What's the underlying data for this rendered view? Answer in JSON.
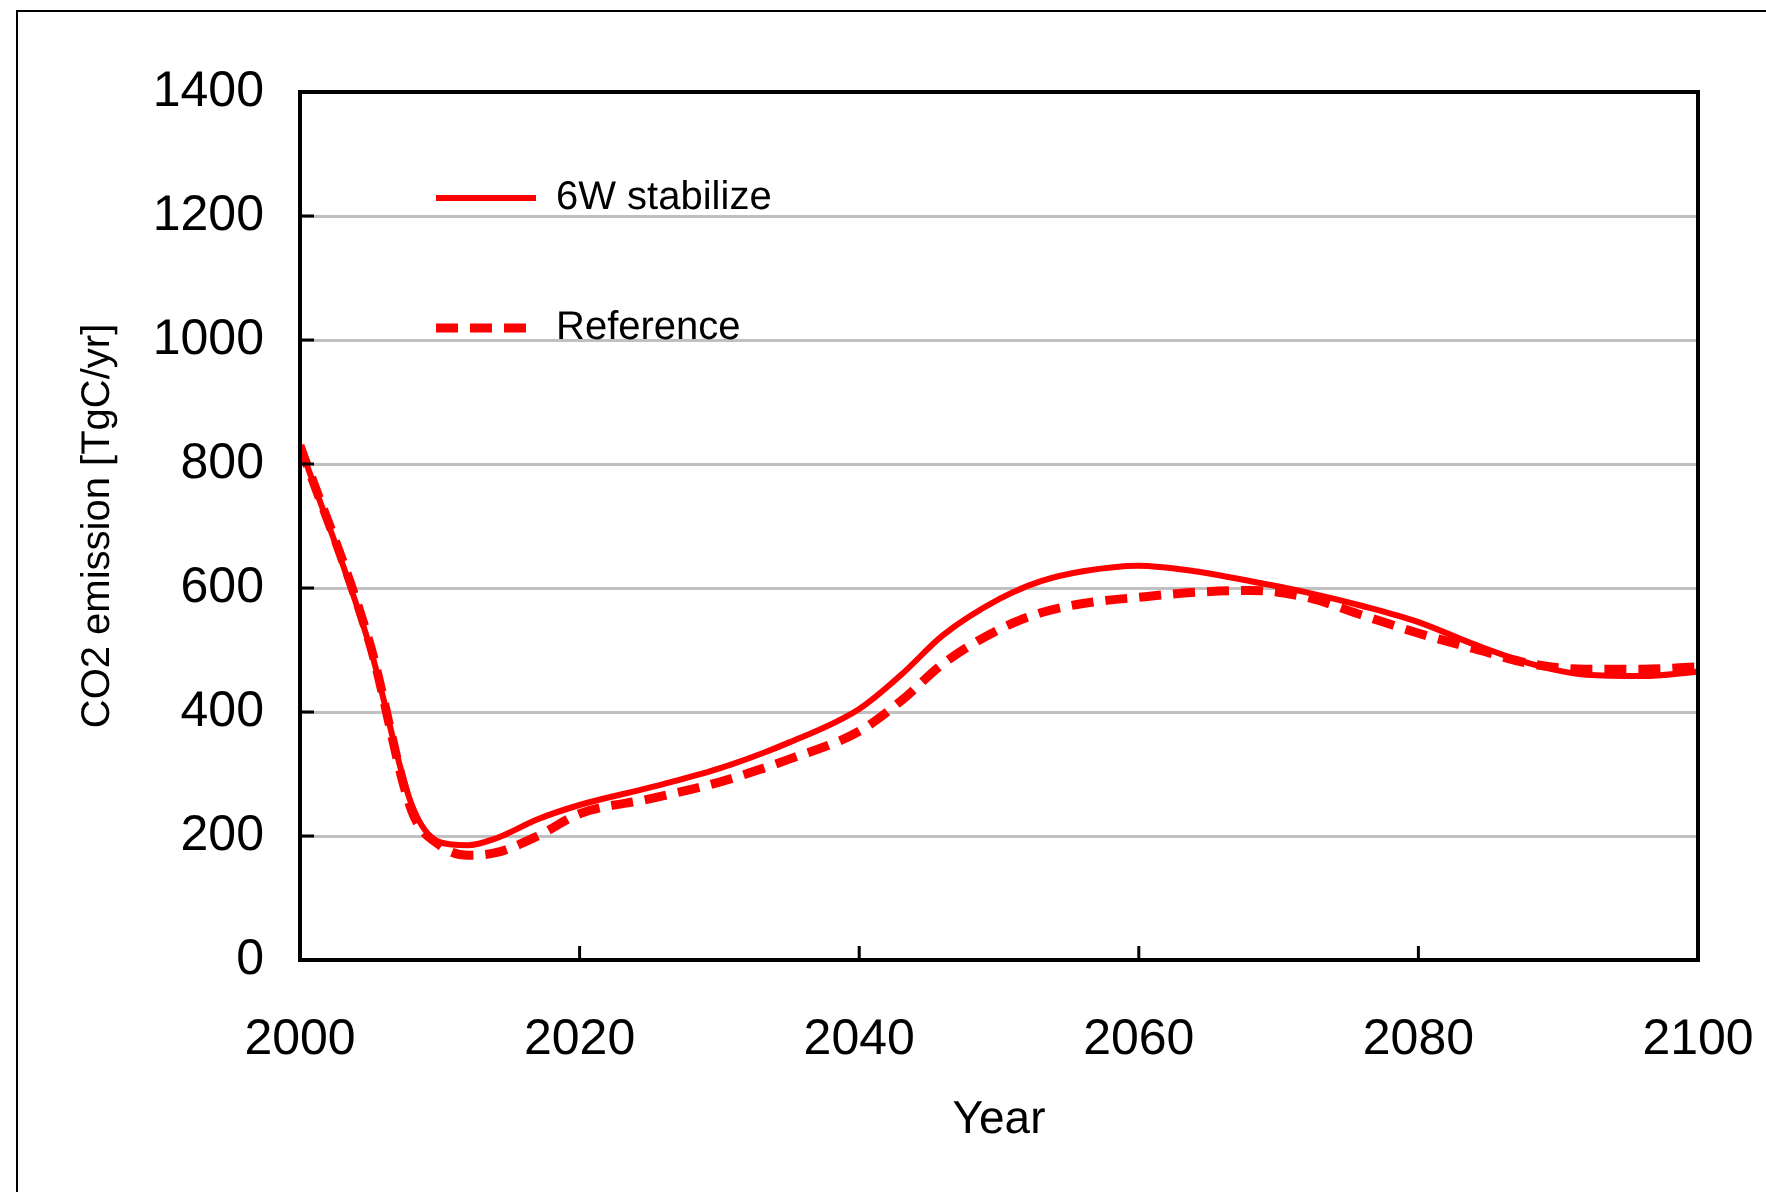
{
  "chart_data": {
    "type": "line",
    "xlabel": "Year",
    "ylabel": "CO2 emission [TgC/yr]",
    "x": [
      2000,
      2005,
      2008,
      2010,
      2012,
      2014,
      2017,
      2020,
      2025,
      2030,
      2035,
      2040,
      2043,
      2046,
      2050,
      2053,
      2056,
      2060,
      2064,
      2068,
      2072,
      2076,
      2080,
      2084,
      2088,
      2092,
      2096,
      2100
    ],
    "series": [
      {
        "name": "6W stabilize",
        "color": "#ff0000",
        "line_style": "solid",
        "values": [
          830,
          505,
          250,
          190,
          185,
          196,
          227,
          250,
          278,
          309,
          351,
          405,
          460,
          524,
          582,
          611,
          627,
          636,
          627,
          611,
          593,
          571,
          545,
          509,
          478,
          460,
          458,
          465
        ]
      },
      {
        "name": "Reference",
        "color": "#ff0000",
        "line_style": "dashed",
        "values": [
          830,
          510,
          240,
          185,
          169,
          173,
          200,
          236,
          260,
          287,
          324,
          369,
          418,
          478,
          533,
          560,
          575,
          585,
          593,
          596,
          585,
          556,
          527,
          502,
          478,
          469,
          469,
          473
        ]
      }
    ],
    "xlim": [
      2000,
      2100
    ],
    "xticks": [
      2000,
      2020,
      2040,
      2060,
      2080,
      2100
    ],
    "ylim": [
      0,
      1400
    ],
    "yticks": [
      0,
      200,
      400,
      600,
      800,
      1000,
      1200,
      1400
    ],
    "grid": "y",
    "legend": "top left",
    "marker": "none"
  }
}
